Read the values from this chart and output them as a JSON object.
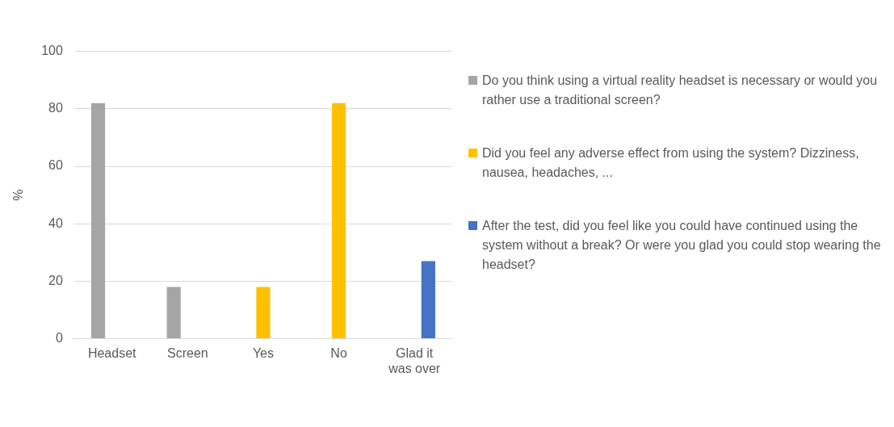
{
  "chart_data": {
    "type": "bar",
    "ylabel": "%",
    "categories": [
      "Headset",
      "Screen",
      "Yes",
      "No",
      "Glad it was over"
    ],
    "series": [
      {
        "name": "Do you think using a virtual reality headset is necessary or would you rather use a traditional screen?",
        "color": "#a5a5a5",
        "values": [
          82,
          18,
          null,
          null,
          null
        ]
      },
      {
        "name": "Did you feel any adverse effect from using the system? Dizziness, nausea, headaches, ...",
        "color": "#ffc000",
        "values": [
          null,
          null,
          18,
          82,
          null
        ]
      },
      {
        "name": "After the test, did you feel like you could have continued using the system without a break? Or were you glad you could stop wearing the headset?",
        "color": "#4472c4",
        "values": [
          null,
          null,
          null,
          null,
          27
        ]
      }
    ],
    "ylim": [
      0,
      100
    ],
    "yticks": [
      0,
      20,
      40,
      60,
      80,
      100
    ],
    "grid": "y",
    "legend": "right"
  }
}
